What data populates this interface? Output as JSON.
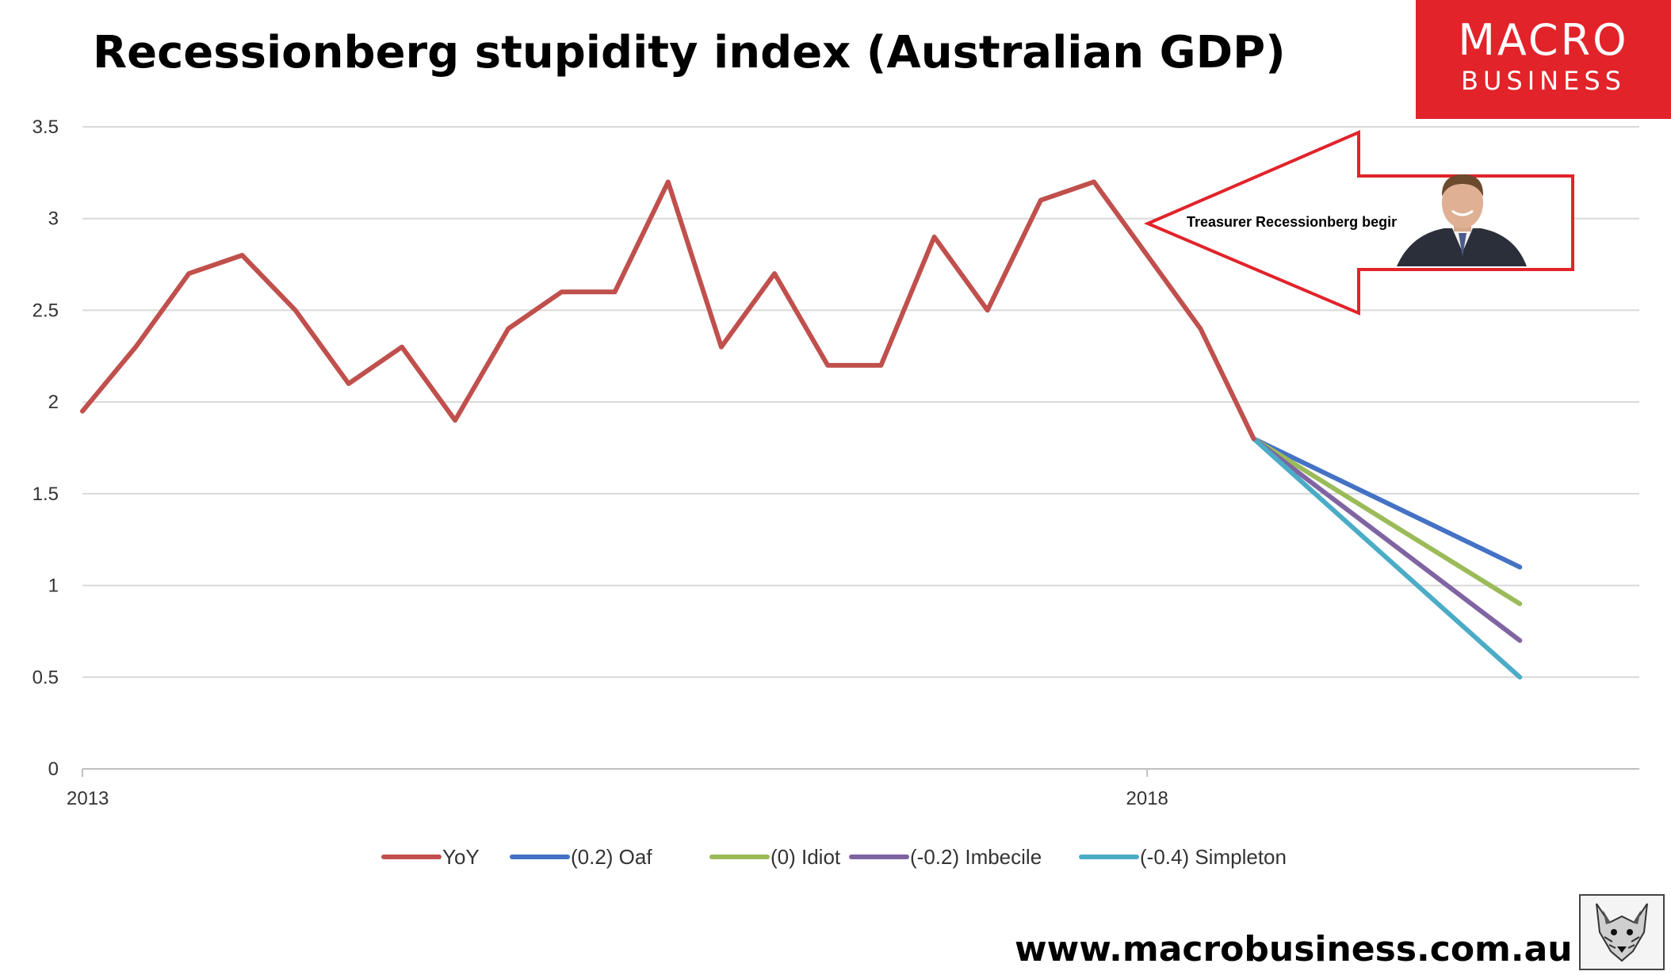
{
  "title": "Recessionberg stupidity index (Australian GDP)",
  "logo": {
    "line1": "MACRO",
    "line2": "BUSINESS",
    "color": "#e2232a"
  },
  "website": "www.macrobusiness.com.au",
  "annotation": {
    "text": "Treasurer Recessionberg begins",
    "color": "#e2232a"
  },
  "chart_data": {
    "type": "line",
    "title": "Recessionberg stupidity index (Australian GDP)",
    "xlabel": "",
    "ylabel": "",
    "ylim": [
      0,
      3.5
    ],
    "yticks": [
      0,
      0.5,
      1,
      1.5,
      2,
      2.5,
      3,
      3.5
    ],
    "ytick_labels": [
      "0",
      "0.5",
      "1",
      "1.5",
      "2",
      "2.5",
      "3",
      "3.5"
    ],
    "xtick_labels": [
      {
        "label": "2013",
        "index": 0
      },
      {
        "label": "2018",
        "index": 20
      }
    ],
    "grid": true,
    "legend_position": "bottom",
    "series": [
      {
        "name": "YoY",
        "color": "#c0504d",
        "x": [
          0,
          1,
          2,
          3,
          4,
          5,
          6,
          7,
          8,
          9,
          10,
          11,
          12,
          13,
          14,
          15,
          16,
          17,
          18,
          19,
          20,
          21,
          22
        ],
        "values": [
          1.95,
          2.3,
          2.7,
          2.8,
          2.5,
          2.1,
          2.3,
          1.9,
          2.4,
          2.6,
          2.6,
          3.2,
          2.3,
          2.7,
          2.2,
          2.2,
          2.9,
          2.5,
          3.1,
          3.2,
          2.8,
          2.4,
          1.8
        ]
      },
      {
        "name": "(0.2) Oaf",
        "color": "#4472c4",
        "x": [
          22,
          27
        ],
        "values": [
          1.8,
          1.1
        ]
      },
      {
        "name": "(0) Idiot",
        "color": "#9bbb59",
        "x": [
          22,
          27
        ],
        "values": [
          1.8,
          0.9
        ]
      },
      {
        "name": "(-0.2) Imbecile",
        "color": "#8064a2",
        "x": [
          22,
          27
        ],
        "values": [
          1.8,
          0.7
        ]
      },
      {
        "name": "(-0.4) Simpleton",
        "color": "#4bacc6",
        "x": [
          22,
          27
        ],
        "values": [
          1.8,
          0.5
        ]
      }
    ]
  }
}
